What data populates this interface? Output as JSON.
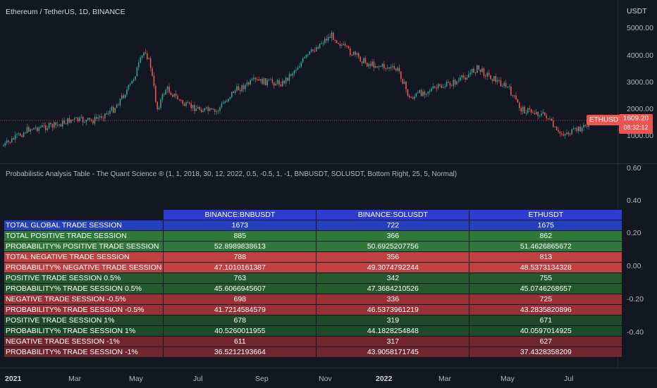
{
  "chart": {
    "title": "Ethereum / TetherUS, 1D, BINANCE",
    "price_unit": "USDT",
    "price_ticks": [
      "5000.00",
      "4000.00",
      "3000.00",
      "2000.00",
      "1000.00"
    ],
    "symbol_tag": "ETHUSDT",
    "last_price": "1609.20",
    "countdown": "08:32:12",
    "colors": {
      "up": "#26a69a",
      "down": "#ef5350",
      "background": "#131722"
    }
  },
  "indicator": {
    "title": "Probabilistic Analysis Table  - The Quant Science ® (1, 1, 2018, 30, 12, 2022, 0.5, -0.5, 1, -1, BNBUSDT, SOLUSDT, Bottom Right, 25, 5, Normal)",
    "axis_ticks": [
      "0.60",
      "0.40",
      "0.20",
      "0.00",
      "-0.20",
      "-0.40"
    ]
  },
  "time_axis": [
    "2021",
    "Mar",
    "May",
    "Jul",
    "Sep",
    "Nov",
    "2022",
    "Mar",
    "May",
    "Jul"
  ],
  "table": {
    "headers": [
      "BINANCE:BNBUSDT",
      "BINANCE:SOLUSDT",
      "ETHUSDT"
    ],
    "rows": [
      {
        "label": "TOTAL GLOBAL TRADE SESSION",
        "values": [
          "1673",
          "722",
          "1675"
        ],
        "color": "blue"
      },
      {
        "label": "TOTAL POSITIVE TRADE SESSION",
        "values": [
          "885",
          "366",
          "862"
        ],
        "color": "green"
      },
      {
        "label": "PROBABILITY% POSITIVE TRADE SESSION",
        "values": [
          "52.8989838613",
          "50.6925207756",
          "51.4626865672"
        ],
        "color": "green"
      },
      {
        "label": "TOTAL NEGATIVE TRADE SESSION",
        "values": [
          "788",
          "356",
          "813"
        ],
        "color": "red"
      },
      {
        "label": "PROBABILITY% NEGATIVE TRADE SESSION",
        "values": [
          "47.1010161387",
          "49.3074792244",
          "48.5373134328"
        ],
        "color": "red"
      },
      {
        "label": "POSITIVE TRADE SESSION 0.5%",
        "values": [
          "763",
          "342",
          "755"
        ],
        "color": "dgreen"
      },
      {
        "label": "PROBABILITY% TRADE SESSION 0.5%",
        "values": [
          "45.6066945607",
          "47.3684210526",
          "45.0746268657"
        ],
        "color": "dgreen"
      },
      {
        "label": "NEGATIVE TRADE SESSION -0.5%",
        "values": [
          "698",
          "336",
          "725"
        ],
        "color": "dred"
      },
      {
        "label": "PROBABILITY% TRADE SESSION -0.5%",
        "values": [
          "41.7214584579",
          "46.5373961219",
          "43.2835820896"
        ],
        "color": "dred"
      },
      {
        "label": "POSITIVE TRADE SESSION 1%",
        "values": [
          "678",
          "319",
          "671"
        ],
        "color": "vdgreen"
      },
      {
        "label": "PROBABILITY% TRADE SESSION 1%",
        "values": [
          "40.5260011955",
          "44.1828254848",
          "40.0597014925"
        ],
        "color": "vdgreen"
      },
      {
        "label": "NEGATIVE TRADE SESSION -1%",
        "values": [
          "611",
          "317",
          "627"
        ],
        "color": "vdred"
      },
      {
        "label": "PROBABILITY% TRADE SESSION -1%",
        "values": [
          "36.5212193664",
          "43.9058171745",
          "37.4328358209"
        ],
        "color": "vdred"
      }
    ]
  }
}
